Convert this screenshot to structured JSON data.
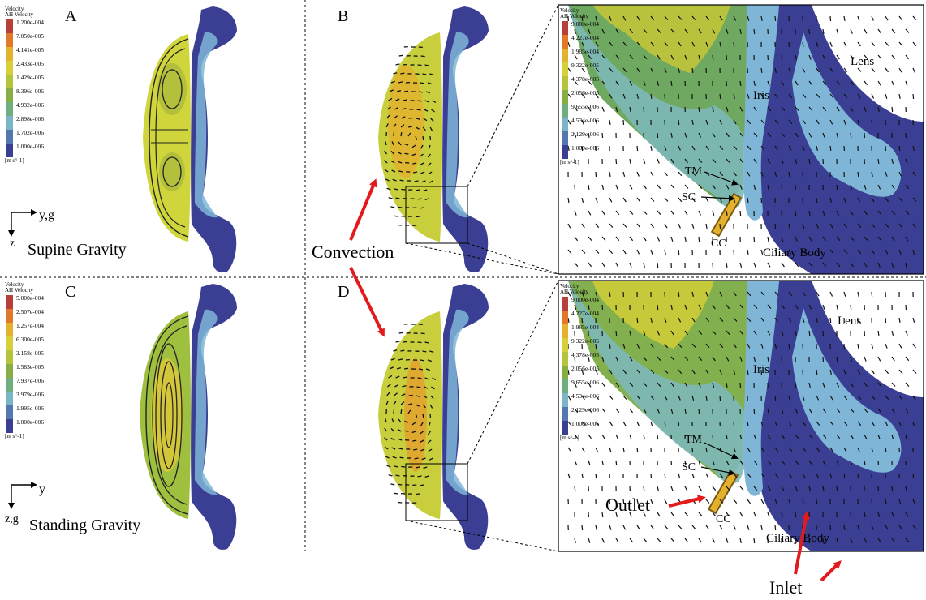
{
  "panels": {
    "A": {
      "label": "A",
      "gravity": "Supine Gravity",
      "axis_h": "y,g",
      "axis_v": "z"
    },
    "B": {
      "label": "B"
    },
    "C": {
      "label": "C",
      "gravity": "Standing Gravity",
      "axis_h": "y",
      "axis_v": "z,g"
    },
    "D": {
      "label": "D"
    }
  },
  "legends": {
    "title1": "Velocity",
    "title2": "AH Velocity",
    "unit": "[m s^-1]",
    "A": [
      "1.200e-004",
      "7.050e-005",
      "4.141e-005",
      "2.433e-005",
      "1.429e-005",
      "8.396e-006",
      "4.932e-006",
      "2.898e-006",
      "1.702e-006",
      "1.000e-006"
    ],
    "B": [
      "9.000e-004",
      "4.227e-004",
      "1.985e-004",
      "9.322e-005",
      "4.378e-005",
      "2.056e-005",
      "9.655e-006",
      "4.534e-006",
      "2.129e-006",
      "1.000e-006"
    ],
    "C": [
      "5.000e-004",
      "2.507e-004",
      "1.257e-004",
      "6.300e-005",
      "3.158e-005",
      "1.583e-005",
      "7.937e-006",
      "3.979e-006",
      "1.995e-006",
      "1.000e-006"
    ],
    "D": [
      "9.000e-004",
      "4.227e-004",
      "1.985e-004",
      "9.322e-005",
      "4.378e-005",
      "2.056e-005",
      "9.655e-006",
      "4.534e-006",
      "2.129e-006",
      "1.000e-006"
    ],
    "colors": [
      "#b5413a",
      "#e07a2a",
      "#e3b22e",
      "#d8d03a",
      "#b5c43d",
      "#88ad45",
      "#6fae7f",
      "#7bb5c8",
      "#5577b0",
      "#3a3f92"
    ]
  },
  "annotations": {
    "convection": "Convection",
    "iris": "Iris",
    "lens": "Lens",
    "tm": "TM",
    "sc": "SC",
    "cc": "CC",
    "ciliary_body": "Ciliary Body",
    "outlet": "Outlet",
    "inlet": "Inlet"
  },
  "colors": {
    "arrow_red": "#e3191b",
    "tissue_blue": "#3b3f94",
    "light_blue": "#7fb6d8"
  }
}
